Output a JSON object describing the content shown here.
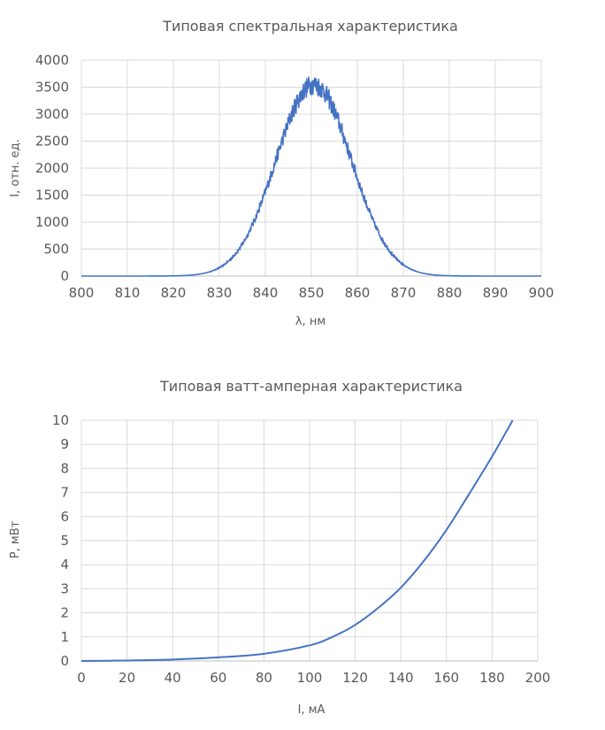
{
  "chart_data": [
    {
      "type": "line",
      "title": "Типовая спектральная характеристика",
      "xlabel": "λ, нм",
      "ylabel": "I, отн. ед.",
      "xlim": [
        800,
        900
      ],
      "ylim": [
        0,
        4000
      ],
      "x_ticks": [
        800,
        810,
        820,
        830,
        840,
        850,
        860,
        870,
        880,
        890,
        900
      ],
      "y_ticks": [
        0,
        500,
        1000,
        1500,
        2000,
        2500,
        3000,
        3500,
        4000
      ],
      "grid": true,
      "legend": "none",
      "line_color": "#4472c4",
      "shape": {
        "peak_x": 850.5,
        "peak_y": 3550,
        "width_sigma": 8.2,
        "noise": true
      },
      "x": [
        800,
        820,
        825,
        830,
        835,
        840,
        843,
        846,
        848,
        850,
        852,
        854,
        857,
        860,
        865,
        870,
        875,
        880,
        900
      ],
      "y": [
        0,
        20,
        60,
        180,
        600,
        1500,
        2200,
        3000,
        3400,
        3600,
        3500,
        3200,
        2500,
        1600,
        650,
        180,
        40,
        5,
        0
      ]
    },
    {
      "type": "line",
      "title": "Типовая ватт-амперная характеристика",
      "xlabel": "I, мА",
      "ylabel": "P, мВт",
      "xlim": [
        0,
        200
      ],
      "ylim": [
        0,
        10
      ],
      "x_ticks": [
        0,
        20,
        40,
        60,
        80,
        100,
        120,
        140,
        160,
        180,
        200
      ],
      "y_ticks": [
        0,
        1,
        2,
        3,
        4,
        5,
        6,
        7,
        8,
        9,
        10
      ],
      "grid": true,
      "legend": "none",
      "line_color": "#4472c4",
      "x": [
        0,
        20,
        40,
        60,
        80,
        100,
        110,
        120,
        130,
        140,
        150,
        160,
        170,
        180,
        189
      ],
      "y": [
        0,
        0.02,
        0.06,
        0.15,
        0.3,
        0.65,
        1.0,
        1.5,
        2.2,
        3.05,
        4.15,
        5.45,
        6.95,
        8.5,
        10
      ]
    }
  ]
}
